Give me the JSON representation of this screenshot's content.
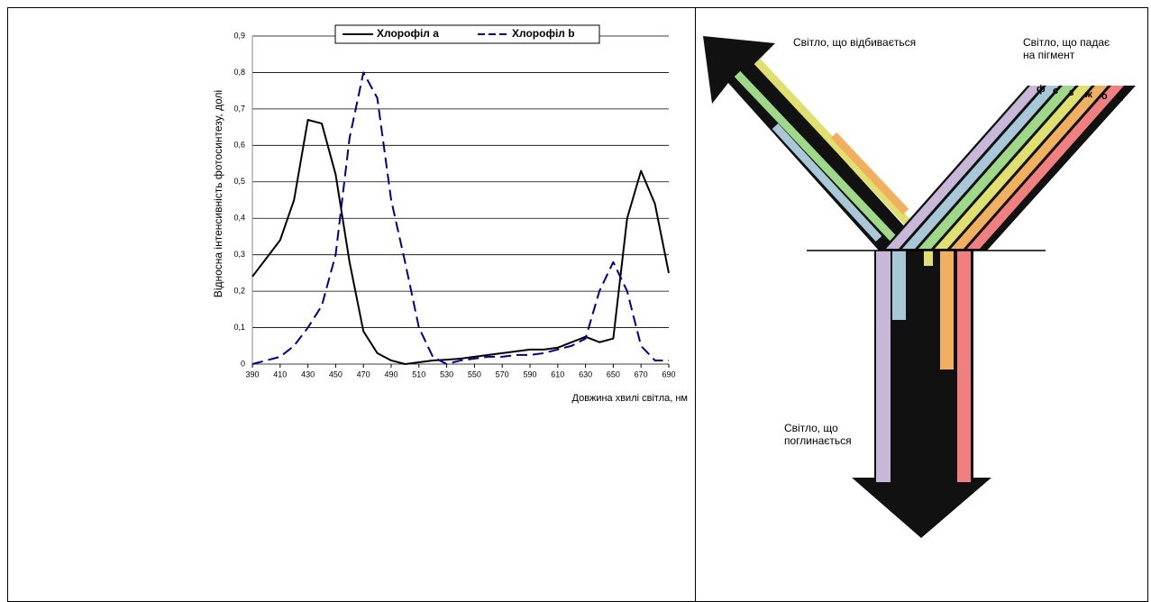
{
  "chart_data": {
    "type": "line",
    "x_label": "Довжина хвилі світла, нм",
    "y_label": "Відносна інтенсивність фотосинтезу, долі",
    "x": [
      390,
      400,
      410,
      420,
      430,
      440,
      450,
      460,
      470,
      480,
      490,
      500,
      510,
      520,
      530,
      540,
      550,
      560,
      570,
      580,
      590,
      600,
      610,
      620,
      630,
      640,
      650,
      660,
      670,
      680,
      690
    ],
    "series": [
      {
        "name": "Хлорофіл a",
        "color": "#000000",
        "dash": false,
        "values": [
          0.24,
          0.29,
          0.34,
          0.45,
          0.67,
          0.66,
          0.52,
          0.28,
          0.09,
          0.03,
          0.01,
          0.0,
          0.005,
          0.01,
          0.012,
          0.015,
          0.02,
          0.025,
          0.03,
          0.035,
          0.04,
          0.04,
          0.045,
          0.06,
          0.075,
          0.06,
          0.07,
          0.4,
          0.53,
          0.44,
          0.25
        ]
      },
      {
        "name": "Хлорофіл b",
        "color": "#00008b",
        "dash": true,
        "values": [
          0.0,
          0.01,
          0.02,
          0.05,
          0.1,
          0.16,
          0.3,
          0.62,
          0.8,
          0.73,
          0.45,
          0.28,
          0.1,
          0.02,
          0.0,
          0.01,
          0.015,
          0.02,
          0.02,
          0.025,
          0.025,
          0.03,
          0.04,
          0.05,
          0.07,
          0.2,
          0.28,
          0.2,
          0.05,
          0.01,
          0.01
        ]
      }
    ],
    "xlim": [
      390,
      690
    ],
    "xticks": [
      390,
      410,
      430,
      450,
      470,
      490,
      510,
      530,
      550,
      570,
      590,
      610,
      630,
      650,
      670,
      690
    ],
    "ylim": [
      0,
      0.9
    ],
    "yticks": [
      0,
      {
        "value": 0.1,
        "label": "0,1"
      },
      {
        "value": 0.2,
        "label": "0,2"
      },
      {
        "value": 0.3,
        "label": "0,3"
      },
      {
        "value": 0.4,
        "label": "0,4"
      },
      {
        "value": 0.5,
        "label": "0,5"
      },
      {
        "value": 0.6,
        "label": "0,6"
      },
      {
        "value": 0.7,
        "label": "0,7"
      },
      {
        "value": 0.8,
        "label": "0,8"
      },
      {
        "value": 0.9,
        "label": "0,9"
      }
    ],
    "grid": true
  },
  "diagram": {
    "reflected": "Світло, що відбивається",
    "incident": "Світло, що падає на пігмент",
    "absorbed": "Світло, що поглинається",
    "letters": [
      "ф",
      "с",
      "з",
      "ж",
      "о",
      "ч"
    ]
  }
}
